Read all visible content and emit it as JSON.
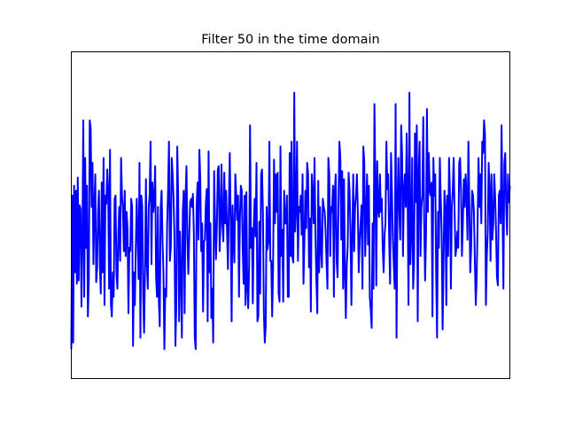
{
  "chart_data": {
    "type": "line",
    "title": "Filter 50 in the time domain",
    "xlabel": "",
    "ylabel": "",
    "x_ticks_visible": false,
    "y_ticks_visible": false,
    "grid": false,
    "legend": "none",
    "line_color": "#0000ff",
    "xlim": [
      0,
      499
    ],
    "ylim": [
      -1.0,
      1.0
    ],
    "series": [
      {
        "values": [
          -0.82,
          0.12,
          -0.78,
          0.18,
          -0.35,
          0.15,
          -0.42,
          0.23,
          -0.4,
          0.06,
          0.04,
          -0.56,
          -0.15,
          0.58,
          -0.5,
          0.35,
          -0.2,
          0.18,
          -0.62,
          -0.39,
          0.58,
          0.53,
          0.05,
          0.32,
          -0.3,
          0.05,
          0.25,
          -0.41,
          -0.33,
          0.02,
          0.15,
          -0.3,
          -0.48,
          0.2,
          -0.35,
          0.35,
          -0.55,
          0.12,
          0.07,
          0.28,
          0.15,
          -0.45,
          0.4,
          -0.55,
          -0.62,
          -0.35,
          -0.5,
          0.1,
          0.12,
          -0.36,
          -0.45,
          -0.12,
          0.05,
          -0.28,
          0.35,
          0.12,
          0.05,
          -0.22,
          0.15,
          -0.25,
          0.02,
          -0.08,
          -0.6,
          -0.2,
          -0.22,
          0.1,
          0.05,
          -0.8,
          -0.35,
          -0.55,
          -0.2,
          0.1,
          -0.13,
          -0.39,
          0.32,
          -0.75,
          0.12,
          0.05,
          -0.5,
          -0.72,
          -0.32,
          0.22,
          -0.3,
          -0.45,
          0.05,
          0.12,
          0.45,
          -0.3,
          0.2,
          0.02,
          0.1,
          0.3,
          -0.38,
          -0.5,
          0.05,
          -0.52,
          -0.68,
          0.05,
          0.15,
          -0.15,
          -0.35,
          -0.82,
          -0.45,
          -0.5,
          -0.06,
          0.15,
          0.45,
          -0.28,
          -0.2,
          0.35,
          0.25,
          0.1,
          -0.15,
          -0.8,
          -0.55,
          0.42,
          0.12,
          -0.65,
          -0.1,
          -0.35,
          -0.75,
          0.02,
          0.15,
          -0.6,
          0.12,
          0.3,
          -0.15,
          -0.36,
          -0.13,
          0.08,
          0.1,
          0.05,
          0.13,
          -0.11,
          -0.75,
          -0.82,
          0.05,
          0.2,
          -0.15,
          0.4,
          0.22,
          -0.22,
          -0.05,
          -0.59,
          -0.16,
          -0.15,
          0.07,
          0.16,
          -0.65,
          0.39,
          -0.35,
          -0.05,
          -0.63,
          -0.45,
          -0.78,
          0.27,
          -0.03,
          -0.27,
          -0.06,
          0.28,
          0.3,
          -0.22,
          -0.02,
          0.31,
          -0.06,
          -0.16,
          0.26,
          -0.05,
          0.15,
          -0.09,
          -0.33,
          0.06,
          0.38,
          -0.05,
          -0.65,
          0.06,
          -0.15,
          -0.29,
          0.25,
          0.13,
          -0.03,
          0.12,
          -0.5,
          -0.02,
          0.18,
          0.15,
          -0.2,
          -0.42,
          0.12,
          -0.55,
          0.14,
          -0.45,
          -0.57,
          -0.31,
          0.55,
          -0.2,
          -0.08,
          -0.54,
          -0.07,
          0.1,
          -0.13,
          0.32,
          -0.65,
          -0.62,
          -0.04,
          -0.48,
          0.25,
          0.28,
          0.01,
          -0.6,
          -0.78,
          -0.68,
          0.05,
          -0.21,
          -0.16,
          0.45,
          -0.28,
          -0.28,
          -0.62,
          -0.32,
          0.34,
          -0.05,
          0.25,
          0.02,
          0.26,
          -0.48,
          -0.53,
          0.42,
          -0.25,
          -0.09,
          -0.53,
          0.15,
          -0.05,
          -0.05,
          0.12,
          -0.5,
          -0.5,
          0.38,
          -0.25,
          0.45,
          -0.26,
          -0.29,
          0.75,
          -0.1,
          0.05,
          0.45,
          -0.28,
          0.05,
          0.02,
          0.12,
          -0.12,
          0.25,
          -0.42,
          -0.16,
          0.15,
          -0.08,
          0.32,
          0.25,
          -0.32,
          -0.02,
          -0.59,
          0.25,
          0.12,
          -0.05,
          0.35,
          -0.12,
          -0.4,
          -0.6,
          0.21,
          -0.35,
          0.05,
          -0.2,
          -0.32,
          0.1,
          0.05,
          0.02,
          -0.1,
          -0.28,
          -0.45,
          0.35,
          0.25,
          -0.25,
          0.05,
          0.02,
          0.18,
          -0.5,
          0.15,
          0.25,
          -0.28,
          -0.38,
          0.08,
          0.45,
          0.35,
          -0.15,
          0.27,
          -0.45,
          0.22,
          -0.35,
          -0.63,
          -0.3,
          -0.19,
          0.26,
          0.15,
          -0.1,
          -0.55,
          -0.12,
          0.25,
          -0.22,
          0.05,
          0.12,
          0.25,
          0.03,
          -0.35,
          -0.15,
          -0.05,
          0.06,
          -0.45,
          0.42,
          0.32,
          -0.25,
          0.02,
          0.25,
          -0.18,
          0.18,
          -0.5,
          -0.58,
          -0.69,
          -0.05,
          -0.45,
          0.68,
          0.2,
          -0.43,
          0.33,
          0.05,
          -0.01,
          0.25,
          0.02,
          0.1,
          -0.2,
          -0.35,
          -0.12,
          -0.05,
          0.45,
          0.16,
          0.25,
          -0.15,
          -0.42,
          0.38,
          0.15,
          -0.15,
          -0.3,
          -0.45,
          0.68,
          -0.75,
          0.05,
          0.35,
          0.02,
          -0.15,
          0.55,
          0.38,
          -0.25,
          0.15,
          0.25,
          0.05,
          0.5,
          0.12,
          -0.55,
          0.75,
          -0.3,
          -0.1,
          0.35,
          -0.45,
          -0.3,
          0.5,
          0.08,
          0.55,
          -0.65,
          0.25,
          0.45,
          -0.25,
          0.05,
          0.12,
          0.6,
          -0.03,
          -0.4,
          -0.12,
          0.65,
          0.02,
          0.38,
          0.15,
          0.12,
          0.2,
          -0.62,
          0.35,
          0.12,
          0.25,
          -0.35,
          -0.75,
          0.02,
          -0.2,
          0.35,
          0.1,
          -0.12,
          -0.7,
          -0.3,
          0.15,
          0.05,
          -0.55,
          0.12,
          -0.25,
          0.35,
          0.12,
          -0.45,
          0.05,
          0.15,
          0.35,
          0.02,
          -0.25,
          -0.2,
          -0.1,
          -0.2,
          0.32,
          0.35,
          0.15,
          -0.25,
          -0.05,
          0.22,
          0.05,
          0.25,
          0.12,
          -0.15,
          0.45,
          0.08,
          -0.35,
          -0.2,
          0.15,
          0.12,
          0.02,
          -0.28,
          -0.55,
          -0.38,
          -0.05,
          0.35,
          0.05,
          0.25,
          -0.05,
          0.45,
          0.38,
          0.58,
          0.5,
          -0.55,
          -0.25,
          -0.1,
          0.32,
          0.15,
          -0.28,
          0.25,
          -0.15,
          -0.05,
          0.25,
          0.12,
          -0.1,
          -0.38,
          -0.43,
          0.12,
          0.15,
          -0.05,
          0.55,
          0.05,
          -0.45,
          0.32,
          0.38,
          0.05,
          -0.12,
          0.25,
          0.08,
          0.18
        ]
      }
    ]
  }
}
